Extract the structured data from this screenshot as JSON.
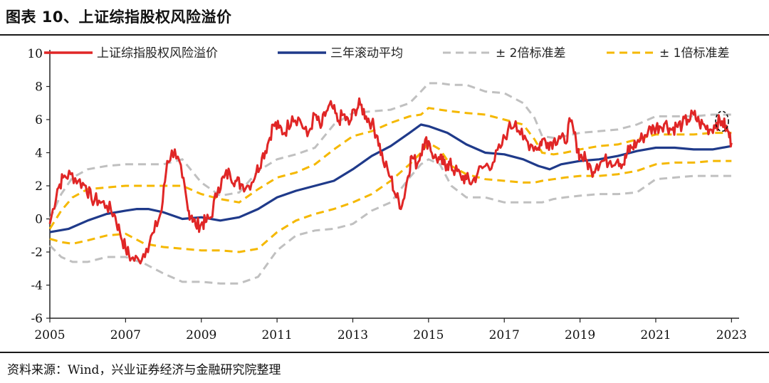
{
  "title": "图表 10、上证综指股权风险溢价",
  "source": "资料来源：Wind，兴业证券经济与金融研究院整理",
  "chart_data": {
    "type": "line",
    "xlabel": "",
    "ylabel": "",
    "xlim": [
      2005,
      2023.05
    ],
    "ylim": [
      -6,
      10
    ],
    "x_ticks": [
      "2005",
      "2007",
      "2009",
      "2011",
      "2013",
      "2015",
      "2017",
      "2019",
      "2021",
      "2023"
    ],
    "y_ticks": [
      "10",
      "8",
      "6",
      "4",
      "2",
      "0",
      "-2",
      "-4",
      "-6"
    ],
    "legend_position": "top",
    "series": [
      {
        "name": "上证综指股权风险溢价",
        "color": "#e02626",
        "style": "solid-jagged",
        "x": [
          2005.0,
          2005.2,
          2005.35,
          2005.55,
          2005.75,
          2005.95,
          2006.1,
          2006.3,
          2006.5,
          2006.7,
          2006.85,
          2007.0,
          2007.15,
          2007.35,
          2007.55,
          2007.75,
          2007.95,
          2008.1,
          2008.3,
          2008.5,
          2008.65,
          2008.75,
          2008.85,
          2009.0,
          2009.1,
          2009.25,
          2009.45,
          2009.6,
          2009.75,
          2009.9,
          2010.05,
          2010.25,
          2010.45,
          2010.6,
          2010.75,
          2010.9,
          2011.05,
          2011.2,
          2011.4,
          2011.6,
          2011.8,
          2012.0,
          2012.15,
          2012.3,
          2012.45,
          2012.6,
          2012.75,
          2012.9,
          2013.05,
          2013.2,
          2013.35,
          2013.5,
          2013.65,
          2013.8,
          2014.0,
          2014.15,
          2014.3,
          2014.45,
          2014.55,
          2014.7,
          2014.85,
          2015.0,
          2015.15,
          2015.3,
          2015.4,
          2015.5,
          2015.6,
          2015.7,
          2015.85,
          2016.0,
          2016.15,
          2016.3,
          2016.5,
          2016.7,
          2016.9,
          2017.1,
          2017.3,
          2017.5,
          2017.7,
          2017.9,
          2018.0,
          2018.15,
          2018.3,
          2018.45,
          2018.6,
          2018.75,
          2018.9,
          2019.0,
          2019.15,
          2019.3,
          2019.45,
          2019.6,
          2019.8,
          2020.0,
          2020.15,
          2020.25,
          2020.35,
          2020.5,
          2020.65,
          2020.8,
          2020.95,
          2021.1,
          2021.25,
          2021.4,
          2021.55,
          2021.7,
          2021.85,
          2022.0,
          2022.15,
          2022.3,
          2022.45,
          2022.6,
          2022.75,
          2022.9,
          2023.0
        ],
        "values": [
          -0.3,
          1.8,
          2.5,
          2.7,
          2.3,
          2.0,
          1.2,
          1.1,
          0.8,
          0.3,
          -0.8,
          -1.8,
          -2.4,
          -2.5,
          -1.8,
          -0.8,
          0.5,
          3.5,
          4.2,
          2.5,
          0.5,
          0.2,
          -0.4,
          -0.3,
          -0.2,
          0.1,
          1.9,
          2.5,
          2.8,
          2.3,
          2.1,
          2.0,
          2.8,
          3.7,
          4.5,
          5.7,
          5.5,
          5.2,
          6.2,
          6.0,
          5.0,
          6.3,
          5.5,
          6.5,
          6.8,
          5.9,
          6.3,
          5.7,
          6.6,
          6.9,
          6.2,
          5.8,
          5.0,
          3.5,
          2.5,
          1.3,
          0.8,
          2.5,
          3.8,
          3.3,
          4.5,
          4.7,
          3.7,
          3.6,
          3.3,
          3.3,
          3.2,
          2.9,
          2.6,
          2.4,
          2.2,
          2.8,
          3.2,
          3.4,
          4.3,
          5.4,
          5.9,
          4.8,
          4.5,
          4.3,
          4.8,
          4.6,
          4.7,
          5.0,
          4.6,
          5.9,
          4.6,
          3.8,
          3.6,
          2.9,
          3.3,
          3.5,
          3.5,
          3.6,
          3.3,
          4.0,
          4.3,
          4.6,
          4.9,
          5.3,
          5.5,
          5.6,
          5.8,
          5.4,
          5.6,
          5.7,
          6.0,
          6.3,
          5.8,
          5.6,
          5.4,
          5.8,
          5.9,
          5.3,
          4.6
        ]
      },
      {
        "name": "三年滚动平均",
        "color": "#1f3a8a",
        "style": "solid",
        "x": [
          2005.0,
          2005.5,
          2006.0,
          2006.5,
          2007.0,
          2007.3,
          2007.6,
          2008.0,
          2008.5,
          2009.0,
          2009.5,
          2010.0,
          2010.5,
          2011.0,
          2011.5,
          2012.0,
          2012.5,
          2013.0,
          2013.5,
          2014.0,
          2014.5,
          2014.8,
          2015.0,
          2015.5,
          2016.0,
          2016.5,
          2017.0,
          2017.5,
          2017.9,
          2018.2,
          2018.5,
          2019.0,
          2019.5,
          2020.0,
          2020.5,
          2021.0,
          2021.5,
          2022.0,
          2022.5,
          2023.0
        ],
        "values": [
          -0.8,
          -0.6,
          -0.1,
          0.3,
          0.5,
          0.6,
          0.6,
          0.4,
          0.0,
          0.1,
          -0.1,
          0.1,
          0.6,
          1.3,
          1.7,
          2.0,
          2.3,
          3.0,
          3.8,
          4.4,
          5.2,
          5.7,
          5.6,
          5.2,
          4.5,
          4.0,
          3.9,
          3.6,
          3.2,
          3.0,
          3.3,
          3.5,
          3.6,
          3.8,
          4.1,
          4.3,
          4.3,
          4.2,
          4.2,
          4.4
        ]
      },
      {
        "name": "± 2倍标准差",
        "color": "#c0c0c0",
        "style": "dashed",
        "bands": [
          {
            "x": [
              2005.0,
              2005.3,
              2005.6,
              2006.0,
              2006.5,
              2007.0,
              2007.5,
              2008.0,
              2008.5,
              2009.0,
              2009.5,
              2010.0,
              2010.5,
              2011.0,
              2011.5,
              2012.0,
              2012.5,
              2013.0,
              2013.5,
              2014.0,
              2014.5,
              2014.8,
              2015.0,
              2015.3,
              2015.6,
              2016.0,
              2016.5,
              2017.0,
              2017.5,
              2017.8,
              2018.0,
              2018.3,
              2018.6,
              2019.0,
              2019.5,
              2020.0,
              2020.5,
              2021.0,
              2021.5,
              2022.0,
              2022.5,
              2023.0
            ],
            "values": [
              0.0,
              1.5,
              2.5,
              3.0,
              3.2,
              3.3,
              3.3,
              3.3,
              3.6,
              2.2,
              1.4,
              1.6,
              2.9,
              3.6,
              3.9,
              4.3,
              5.7,
              6.4,
              6.5,
              6.6,
              7.0,
              7.7,
              8.2,
              8.2,
              8.1,
              8.1,
              7.7,
              7.6,
              7.0,
              6.1,
              5.0,
              4.9,
              5.0,
              5.2,
              5.3,
              5.4,
              5.7,
              6.2,
              6.2,
              6.2,
              6.3,
              6.3
            ]
          },
          {
            "x": [
              2005.0,
              2005.3,
              2005.6,
              2006.0,
              2006.5,
              2007.0,
              2007.5,
              2008.0,
              2008.5,
              2009.0,
              2009.5,
              2010.0,
              2010.5,
              2011.0,
              2011.5,
              2012.0,
              2012.5,
              2013.0,
              2013.5,
              2014.0,
              2014.5,
              2014.8,
              2015.0,
              2015.3,
              2015.6,
              2016.0,
              2016.5,
              2017.0,
              2017.5,
              2017.8,
              2018.0,
              2018.3,
              2018.6,
              2019.0,
              2019.5,
              2020.0,
              2020.5,
              2021.0,
              2021.5,
              2022.0,
              2022.5,
              2023.0
            ],
            "values": [
              -1.6,
              -2.3,
              -2.6,
              -2.6,
              -2.3,
              -2.3,
              -2.7,
              -3.3,
              -3.8,
              -3.8,
              -3.9,
              -3.9,
              -3.5,
              -1.9,
              -1.0,
              -0.7,
              -0.6,
              -0.3,
              0.5,
              1.0,
              2.5,
              3.3,
              3.6,
              3.3,
              2.0,
              1.3,
              1.3,
              1.0,
              1.0,
              1.0,
              1.0,
              1.2,
              1.3,
              1.4,
              1.5,
              1.5,
              1.6,
              2.4,
              2.5,
              2.6,
              2.6,
              2.6
            ]
          }
        ]
      },
      {
        "name": "± 1倍标准差",
        "color": "#f5b800",
        "style": "dashed",
        "bands": [
          {
            "x": [
              2005.0,
              2005.3,
              2005.6,
              2006.0,
              2006.5,
              2007.0,
              2007.5,
              2008.0,
              2008.5,
              2009.0,
              2009.5,
              2010.0,
              2010.5,
              2011.0,
              2011.5,
              2012.0,
              2012.5,
              2013.0,
              2013.5,
              2014.0,
              2014.5,
              2014.8,
              2015.0,
              2015.3,
              2015.6,
              2016.0,
              2016.5,
              2017.0,
              2017.5,
              2017.8,
              2018.0,
              2018.3,
              2018.6,
              2019.0,
              2019.5,
              2020.0,
              2020.5,
              2021.0,
              2021.5,
              2022.0,
              2022.5,
              2023.0
            ],
            "values": [
              -0.6,
              0.5,
              1.3,
              1.8,
              1.9,
              2.0,
              2.0,
              2.0,
              2.0,
              1.5,
              1.2,
              1.0,
              1.8,
              2.5,
              2.8,
              3.3,
              4.2,
              5.0,
              5.3,
              5.8,
              6.2,
              6.3,
              6.7,
              6.6,
              6.5,
              6.4,
              6.3,
              6.0,
              5.7,
              4.8,
              4.0,
              3.9,
              4.0,
              4.2,
              4.4,
              4.5,
              4.8,
              5.1,
              5.1,
              5.1,
              5.2,
              5.2
            ]
          },
          {
            "x": [
              2005.0,
              2005.3,
              2005.6,
              2006.0,
              2006.5,
              2007.0,
              2007.5,
              2008.0,
              2008.5,
              2009.0,
              2009.5,
              2010.0,
              2010.5,
              2011.0,
              2011.5,
              2012.0,
              2012.5,
              2013.0,
              2013.5,
              2014.0,
              2014.5,
              2014.8,
              2015.0,
              2015.3,
              2015.6,
              2016.0,
              2016.5,
              2017.0,
              2017.5,
              2017.8,
              2018.0,
              2018.3,
              2018.6,
              2019.0,
              2019.5,
              2020.0,
              2020.5,
              2021.0,
              2021.5,
              2022.0,
              2022.5,
              2023.0
            ],
            "values": [
              -1.2,
              -1.4,
              -1.5,
              -1.3,
              -1.0,
              -0.9,
              -1.5,
              -1.7,
              -1.8,
              -1.9,
              -1.9,
              -2.0,
              -1.8,
              -0.8,
              -0.1,
              0.3,
              0.6,
              1.0,
              1.5,
              2.3,
              3.3,
              4.0,
              4.6,
              4.2,
              3.2,
              2.7,
              2.4,
              2.3,
              2.2,
              2.2,
              2.3,
              2.4,
              2.5,
              2.6,
              2.6,
              2.7,
              2.9,
              3.3,
              3.4,
              3.4,
              3.5,
              3.5
            ]
          }
        ]
      }
    ],
    "annotations": [
      {
        "type": "ellipse-dashed",
        "x": 2022.75,
        "y": 5.9,
        "note": "current reading highlighted"
      }
    ]
  }
}
